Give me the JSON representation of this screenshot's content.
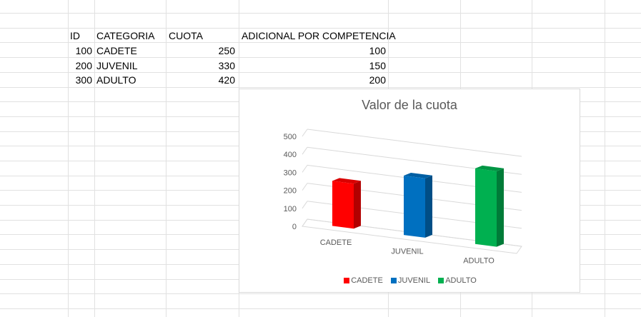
{
  "sheet": {
    "headers": [
      "ID",
      "CATEGORIA",
      "CUOTA",
      "ADICIONAL POR COMPETENCIA"
    ],
    "rows": [
      {
        "id": "100",
        "categoria": "CADETE",
        "cuota": "250",
        "adicional": "100"
      },
      {
        "id": "200",
        "categoria": "JUVENIL",
        "cuota": "330",
        "adicional": "150"
      },
      {
        "id": "300",
        "categoria": "ADULTO",
        "cuota": "420",
        "adicional": "200"
      }
    ]
  },
  "chart_data": {
    "type": "bar",
    "title": "Valor de la cuota",
    "categories": [
      "CADETE",
      "JUVENIL",
      "ADULTO"
    ],
    "values": [
      250,
      330,
      420
    ],
    "colors": [
      "#ff0000",
      "#0070c0",
      "#00b050"
    ],
    "yticks": [
      "0",
      "100",
      "200",
      "300",
      "400",
      "500"
    ],
    "ylim": [
      0,
      500
    ],
    "grid": true,
    "legend_position": "bottom",
    "legend": [
      "CADETE",
      "JUVENIL",
      "ADULTO"
    ]
  }
}
